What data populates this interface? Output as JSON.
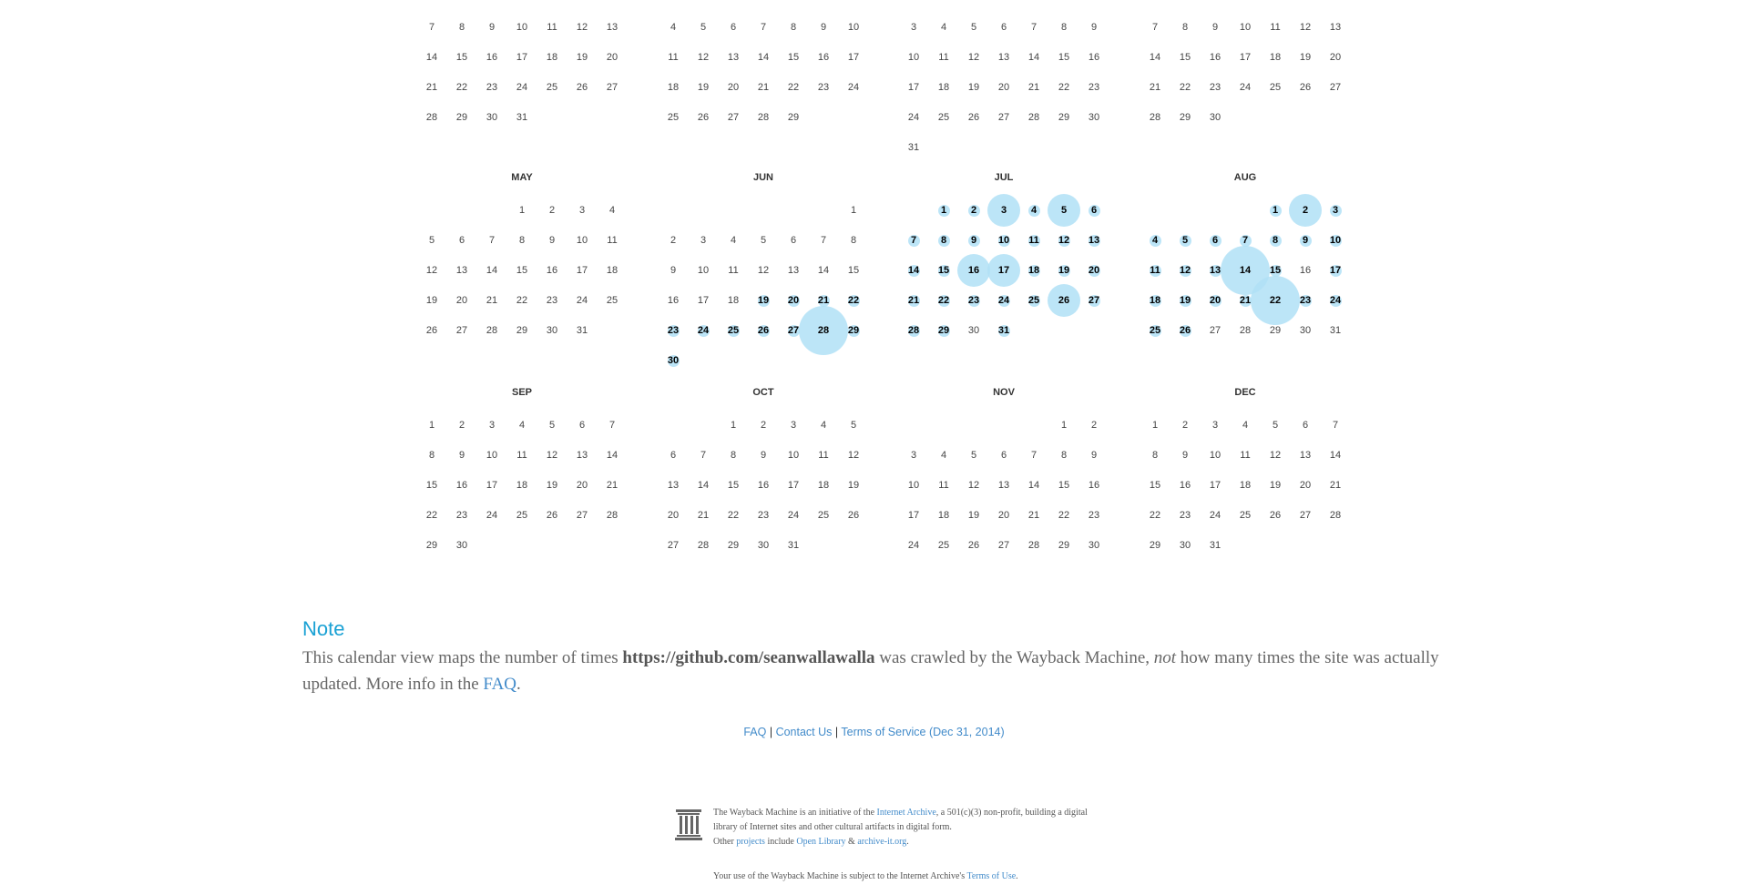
{
  "colors": {
    "bubble": "#b0e0f6",
    "accent": "#1aa1d4",
    "link": "#428bca"
  },
  "calendar": {
    "top_rows": [
      [
        "7",
        "8",
        "9",
        "10",
        "11",
        "12",
        "13",
        "14",
        "15",
        "16",
        "17",
        "18",
        "19",
        "20",
        "21",
        "22",
        "23",
        "24",
        "25",
        "26",
        "27",
        "28",
        "29",
        "30",
        "31"
      ],
      [
        "4",
        "5",
        "6",
        "7",
        "8",
        "9",
        "10",
        "11",
        "12",
        "13",
        "14",
        "15",
        "16",
        "17",
        "18",
        "19",
        "20",
        "21",
        "22",
        "23",
        "24",
        "25",
        "26",
        "27",
        "28",
        "29"
      ],
      [
        "3",
        "4",
        "5",
        "6",
        "7",
        "8",
        "9",
        "10",
        "11",
        "12",
        "13",
        "14",
        "15",
        "16",
        "17",
        "18",
        "19",
        "20",
        "21",
        "22",
        "23",
        "24",
        "25",
        "26",
        "27",
        "28",
        "29",
        "30",
        "31"
      ],
      [
        "7",
        "8",
        "9",
        "10",
        "11",
        "12",
        "13",
        "14",
        "15",
        "16",
        "17",
        "18",
        "19",
        "20",
        "21",
        "22",
        "23",
        "24",
        "25",
        "26",
        "27",
        "28",
        "29",
        "30"
      ]
    ],
    "months": [
      {
        "name": "MAY",
        "first_weekday": 3,
        "days": 31,
        "captures": {}
      },
      {
        "name": "JUN",
        "first_weekday": 6,
        "days": 30,
        "captures": {
          "19": 1,
          "20": 1,
          "21": 1,
          "22": 1,
          "23": 1,
          "24": 1,
          "25": 1,
          "26": 1,
          "27": 1,
          "28": 4,
          "29": 1,
          "30": 1
        }
      },
      {
        "name": "JUL",
        "first_weekday": 1,
        "days": 31,
        "captures": {
          "1": 1,
          "2": 1,
          "3": 2,
          "4": 1,
          "5": 2,
          "6": 1,
          "7": 1,
          "8": 1,
          "9": 1,
          "10": 1,
          "11": 1,
          "12": 1,
          "13": 1,
          "14": 1,
          "15": 1,
          "16": 2,
          "17": 2,
          "18": 1,
          "19": 1,
          "20": 1,
          "21": 1,
          "22": 1,
          "23": 1,
          "24": 1,
          "25": 1,
          "26": 2,
          "27": 1,
          "28": 1,
          "29": 1,
          "31": 1
        }
      },
      {
        "name": "AUG",
        "first_weekday": 4,
        "days": 31,
        "captures": {
          "1": 1,
          "2": 2,
          "3": 1,
          "4": 1,
          "5": 1,
          "6": 1,
          "7": 1,
          "8": 1,
          "9": 1,
          "10": 1,
          "11": 1,
          "12": 1,
          "13": 1,
          "14": 4,
          "15": 1,
          "17": 1,
          "18": 1,
          "19": 1,
          "20": 1,
          "21": 1,
          "22": 4,
          "23": 1,
          "24": 1,
          "25": 1,
          "26": 1
        }
      },
      {
        "name": "SEP",
        "first_weekday": 0,
        "days": 30,
        "captures": {}
      },
      {
        "name": "OCT",
        "first_weekday": 2,
        "days": 31,
        "captures": {}
      },
      {
        "name": "NOV",
        "first_weekday": 5,
        "days": 30,
        "captures": {}
      },
      {
        "name": "DEC",
        "first_weekday": 0,
        "days": 31,
        "captures": {}
      }
    ]
  },
  "note": {
    "title": "Note",
    "text_before": "This calendar view maps the number of times ",
    "url": "https://github.com/seanwallawalla",
    "text_middle": " was crawled by the Wayback Machine, ",
    "emphasis": "not",
    "text_after": " how many times the site was actually updated. More info in the ",
    "faq_link": "FAQ",
    "period": "."
  },
  "links": {
    "faq": "FAQ",
    "sep": "|",
    "contact": "Contact Us",
    "terms": "Terms of Service (Dec 31, 2014)"
  },
  "footer": {
    "logo_icon": "archive-building-icon",
    "line1_a": "The Wayback Machine is an initiative of the ",
    "internet_archive": "Internet Archive",
    "line1_b": ", a 501(c)(3) non-profit, building a digital library of Internet sites and other cultural artifacts in digital form.",
    "other": "Other ",
    "projects": "projects",
    "include": " include ",
    "open_library": "Open Library",
    "amp": " & ",
    "archive_it": "archive-it.org",
    "dot": ".",
    "tou_text": "Your use of the Wayback Machine is subject to the Internet Archive's ",
    "tou_link": "Terms of Use",
    "tou_dot": "."
  }
}
